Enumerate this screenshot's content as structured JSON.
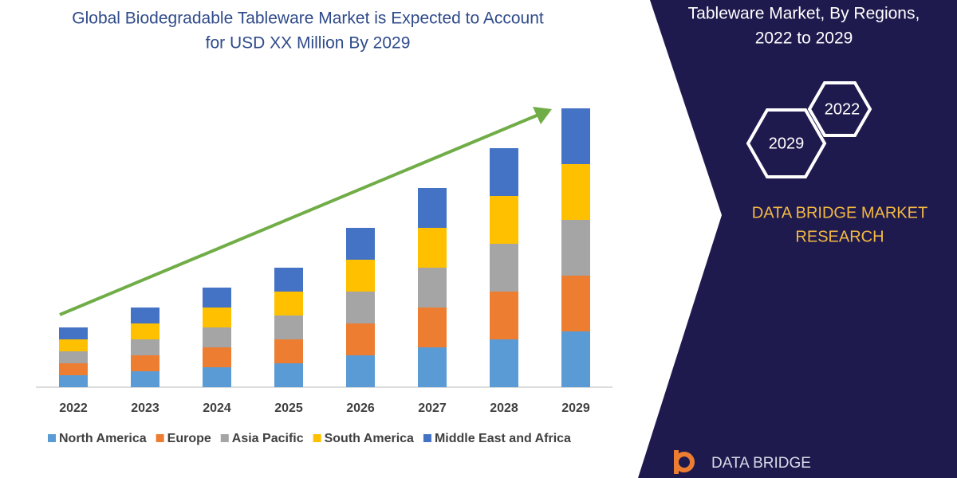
{
  "chart_data": {
    "type": "bar",
    "stacked": true,
    "title_lines": [
      "Global Biodegradable Tableware Market is Expected to Account",
      "for USD XX Million By 2029"
    ],
    "categories": [
      "2022",
      "2023",
      "2024",
      "2025",
      "2026",
      "2027",
      "2028",
      "2029"
    ],
    "series": [
      {
        "name": "North America",
        "color": "#5b9bd5",
        "values": [
          15,
          20,
          25,
          30,
          40,
          50,
          60,
          70
        ]
      },
      {
        "name": "Europe",
        "color": "#ed7d31",
        "values": [
          15,
          20,
          25,
          30,
          40,
          50,
          60,
          70
        ]
      },
      {
        "name": "Asia Pacific",
        "color": "#a5a5a5",
        "values": [
          15,
          20,
          25,
          30,
          40,
          50,
          60,
          70
        ]
      },
      {
        "name": "South America",
        "color": "#ffc000",
        "values": [
          15,
          20,
          25,
          30,
          40,
          50,
          60,
          70
        ]
      },
      {
        "name": "Middle East and Africa",
        "color": "#4472c4",
        "values": [
          15,
          20,
          25,
          30,
          40,
          50,
          60,
          70
        ]
      }
    ]
  },
  "side_panel": {
    "title_lines": [
      "Tableware Market, By Regions,",
      "2022 to 2029"
    ],
    "hexagons": [
      "2022",
      "2029"
    ],
    "brand_lines": [
      "DATA BRIDGE MARKET",
      "RESEARCH"
    ],
    "logo": "DATA BRIDGE"
  }
}
